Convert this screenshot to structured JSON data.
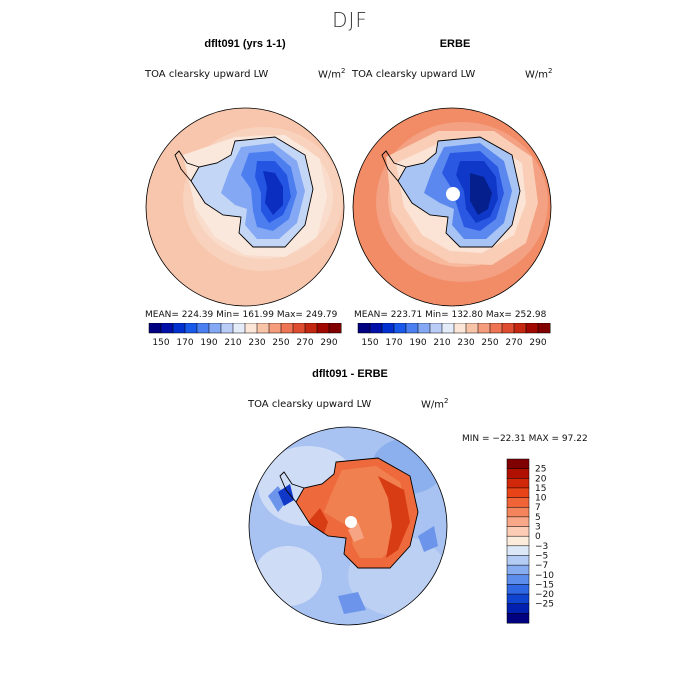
{
  "title": "DJF",
  "panels": [
    {
      "title": "dflt091 (yrs 1-1)",
      "field": "TOA clearsky upward LW",
      "units_base": "W/m",
      "units_exp": "2",
      "stats": "MEAN= 224.39   Min= 161.99   Max= 249.79"
    },
    {
      "title": "ERBE",
      "field": "TOA clearsky upward LW",
      "units_base": "W/m",
      "units_exp": "2",
      "stats": "MEAN= 223.71   Min= 132.80   Max= 252.98"
    }
  ],
  "colorbar_top": {
    "ticks": [
      "150",
      "170",
      "190",
      "210",
      "230",
      "250",
      "270",
      "290"
    ],
    "colors": [
      "#000080",
      "#0010a8",
      "#0030d0",
      "#1858ea",
      "#4c80f0",
      "#84a8f4",
      "#b8ccf6",
      "#e4ecfa",
      "#fce6d8",
      "#f8c4a8",
      "#f49c7c",
      "#ee7454",
      "#e04c30",
      "#c42810",
      "#a00800",
      "#800000"
    ]
  },
  "diff_panel": {
    "title": "dflt091 - ERBE",
    "field": "TOA clearsky upward LW",
    "units_base": "W/m",
    "units_exp": "2",
    "stats": "MIN = −22.31  MAX =   97.22"
  },
  "colorbar_diff": {
    "labels": [
      "25",
      "20",
      "15",
      "10",
      "7",
      "5",
      "3",
      "0",
      "−3",
      "−5",
      "−7",
      "−10",
      "−15",
      "−20",
      "−25"
    ],
    "colors": [
      "#800000",
      "#b01000",
      "#d02808",
      "#e84418",
      "#f06438",
      "#f4845c",
      "#f8a888",
      "#fcccb4",
      "#fcecdc",
      "#dce8f8",
      "#b4ccf4",
      "#88acf0",
      "#5c8cec",
      "#3068e4",
      "#1044d0",
      "#0020b0",
      "#000080"
    ]
  },
  "map_colors": {
    "ocean_high": "#f8c6ac",
    "ocean_mid": "#f8dac8",
    "erbe_ocean_high": "#f28c66",
    "erbe_ocean_mid": "#f6ae8e",
    "ice_edge": "#fbeae0",
    "antarctica_outer": "#a8c4f4",
    "antarctica_mid": "#5a88ee",
    "antarctica_inner": "#2050e0",
    "antarctica_core": "#0a2ab8",
    "diff_ocean": "#a8c2f2",
    "diff_ocean_light": "#cfdcf6",
    "diff_land": "#ee6a3c",
    "diff_land_dark": "#d83c14",
    "diff_land_light": "#f6a484"
  }
}
